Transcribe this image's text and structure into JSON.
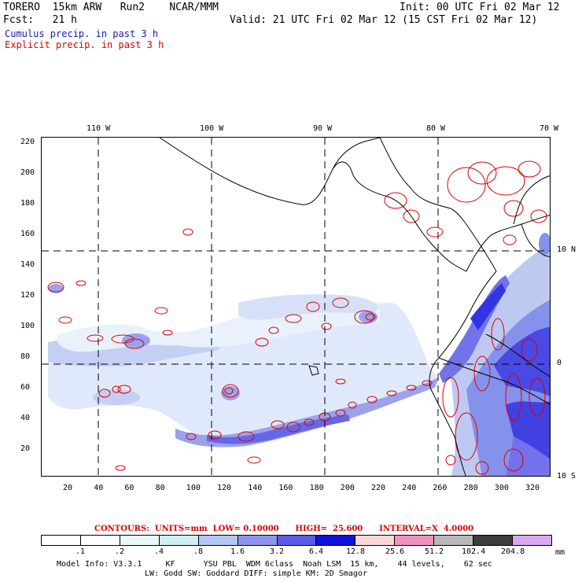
{
  "header": {
    "title_left": "TORERO  15km ARW   Run2    NCAR/MMM",
    "init": "Init: 00 UTC Fri 02 Mar 12",
    "fcst": "Fcst:   21 h",
    "valid": "Valid: 21 UTC Fri 02 Mar 12 (15 CST Fri 02 Mar 12)",
    "legend_cumulus": "Cumulus precip. in past 3 h",
    "legend_explicit": "Explicit precip. in past 3 h"
  },
  "colors": {
    "cumulus": "#1a1acc",
    "explicit": "#dd0000",
    "grid": "#000000"
  },
  "map": {
    "lon_labels": [
      "110 W",
      "100 W",
      "90 W",
      "80 W",
      "70 W"
    ],
    "lat_labels": [
      "10 N",
      "0",
      "10 S"
    ],
    "y_ticks": [
      "220",
      "200",
      "180",
      "160",
      "140",
      "120",
      "100",
      "80",
      "60",
      "40",
      "20"
    ],
    "x_ticks": [
      "20",
      "40",
      "60",
      "80",
      "100",
      "120",
      "140",
      "160",
      "180",
      "200",
      "220",
      "240",
      "260",
      "280",
      "300",
      "320"
    ]
  },
  "contours": {
    "label": "CONTOURS:  UNITS=mm  LOW= 0.10000      HIGH=  25.600      INTERVAL=X  4.0000"
  },
  "colorbar": {
    "labels": [
      ".1",
      ".2",
      ".4",
      ".8",
      "1.6",
      "3.2",
      "6.4",
      "12.8",
      "25.6",
      "51.2",
      "102.4",
      "204.8"
    ],
    "unit": "mm",
    "colors": [
      "#ffffff",
      "#ffffff",
      "#e8f8fb",
      "#cfeff5",
      "#b3c8f2",
      "#8f95ee",
      "#5a5ae8",
      "#1010dd",
      "#fbd8d8",
      "#f092bd",
      "#b8b8b8",
      "#3c3c3c",
      "#d8a8f0"
    ]
  },
  "footer": {
    "line1": "Model Info: V3.3.1     KF      YSU PBL  WDM 6class  Noah LSM  15 km,    44 levels,    62 sec",
    "line2": "LW: Godd SW: Goddard DIFF: simple KM: 2D Smagor"
  }
}
